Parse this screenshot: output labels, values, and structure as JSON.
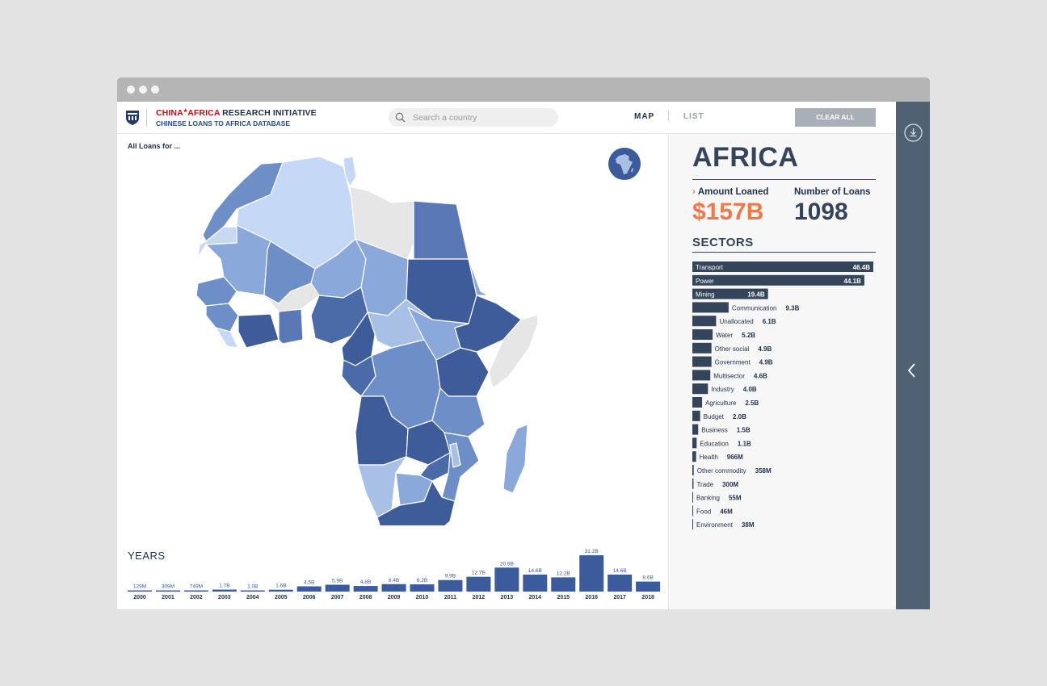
{
  "header": {
    "brand_part1": "CHINA",
    "brand_part2": "AFRICA",
    "brand_part3": " RESEARCH INITIATIVE",
    "subtitle": "CHINESE LOANS TO AFRICA DATABASE",
    "logo_icon": "university-seal-icon"
  },
  "search": {
    "placeholder": "Search a country",
    "icon": "search-icon"
  },
  "nav": {
    "map": "MAP",
    "list": "LIST",
    "active": "MAP"
  },
  "clear_all": "CLEAR ALL",
  "map": {
    "heading": "All Loans for ..."
  },
  "rail": {
    "download_icon": "download-icon",
    "collapse_icon": "chevron-left-icon"
  },
  "summary": {
    "region": "AFRICA",
    "amount_label": "Amount Loaned",
    "amount_value": "$157B",
    "count_label": "Number of Loans",
    "count_value": "1098",
    "sectors_title": "SECTORS"
  },
  "colors": {
    "accent": "#f2784b",
    "navy": "#34445a",
    "bar_blue": "#3b5b9a",
    "rail": "#4f6173"
  },
  "years_title": "YEARS",
  "chart_data": [
    {
      "type": "bar",
      "title": "YEARS",
      "categories": [
        "2000",
        "2001",
        "2002",
        "2003",
        "2004",
        "2005",
        "2006",
        "2007",
        "2008",
        "2009",
        "2010",
        "2011",
        "2012",
        "2013",
        "2014",
        "2015",
        "2016",
        "2017",
        "2018"
      ],
      "values": [
        0.129,
        0.309,
        0.749,
        1.7,
        1.0,
        1.6,
        4.5,
        5.9,
        4.8,
        6.4,
        6.2,
        9.9,
        12.7,
        20.6,
        14.6,
        12.2,
        31.2,
        14.6,
        8.6
      ],
      "labels": [
        "129M",
        "309M",
        "749M",
        "1.7B",
        "1.0B",
        "1.6B",
        "4.5B",
        "5.9B",
        "4.8B",
        "6.4B",
        "6.2B",
        "9.9B",
        "12.7B",
        "20.6B",
        "14.6B",
        "12.2B",
        "31.2B",
        "14.6B",
        "8.6B"
      ],
      "color": "#3b5b9a"
    },
    {
      "type": "bar",
      "title": "SECTORS",
      "orientation": "horizontal",
      "categories": [
        "Transport",
        "Power",
        "Mining",
        "Communication",
        "Unallocated",
        "Water",
        "Other social",
        "Government",
        "Multisector",
        "Industry",
        "Agriculture",
        "Budget",
        "Business",
        "Education",
        "Health",
        "Other commodity",
        "Trade",
        "Banking",
        "Food",
        "Environment"
      ],
      "values": [
        46.4,
        44.1,
        19.4,
        9.3,
        6.1,
        5.2,
        4.9,
        4.9,
        4.6,
        4.0,
        2.5,
        2.0,
        1.5,
        1.1,
        0.966,
        0.358,
        0.3,
        0.055,
        0.046,
        0.038
      ],
      "labels": [
        "46.4B",
        "44.1B",
        "19.4B",
        "9.3B",
        "6.1B",
        "5.2B",
        "4.9B",
        "4.9B",
        "4.6B",
        "4.0B",
        "2.5B",
        "2.0B",
        "1.5B",
        "1.1B",
        "966M",
        "358M",
        "300M",
        "55M",
        "46M",
        "38M"
      ],
      "color": "#34445a"
    }
  ]
}
